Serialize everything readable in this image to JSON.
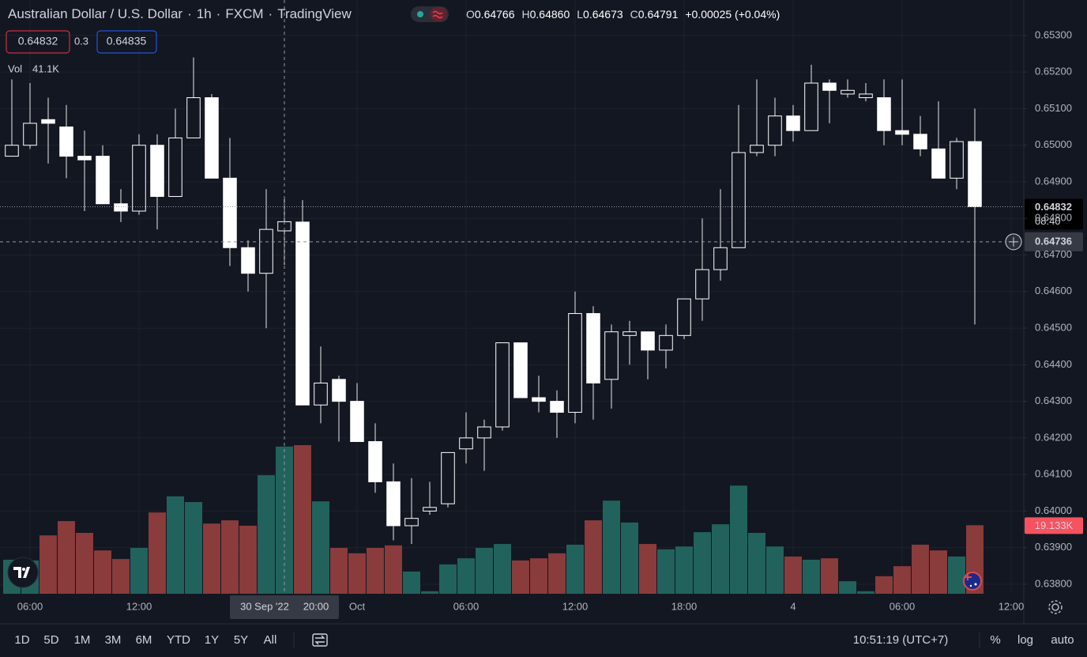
{
  "chart_data": {
    "type": "candlestick",
    "symbol": "Australian Dollar / U.S. Dollar",
    "interval": "1h",
    "exchange": "FXCM",
    "brand": "TradingView",
    "separator": "·",
    "ohlc_keys": [
      "O",
      "H",
      "L",
      "C"
    ],
    "legend_labels": [
      "0.64766",
      "0.64860",
      "0.64673",
      "0.64791"
    ],
    "change_label": "+0.00025 (+0.04%)",
    "trade": {
      "sell": 0.64832,
      "spread": 0.3,
      "buy": 0.64835
    },
    "volume_legend": {
      "name": "Vol",
      "label": "41.1K"
    },
    "open": [
      0.6497,
      0.65,
      0.6507,
      0.6505,
      0.6497,
      0.6497,
      0.6484,
      0.6482,
      0.65,
      0.6486,
      0.6502,
      0.6513,
      0.6491,
      0.6472,
      0.6465,
      0.64766,
      0.6479,
      0.6429,
      0.6436,
      0.643,
      0.6419,
      0.6408,
      0.6396,
      0.64,
      0.6402,
      0.6417,
      0.642,
      0.6423,
      0.6446,
      0.6431,
      0.643,
      0.6427,
      0.6454,
      0.6436,
      0.6448,
      0.6449,
      0.6444,
      0.6448,
      0.6458,
      0.6466,
      0.6472,
      0.6498,
      0.65,
      0.6508,
      0.6504,
      0.6517,
      0.6514,
      0.6513,
      0.6513,
      0.6504,
      0.6503,
      0.6499,
      0.6491,
      0.6501
    ],
    "high": [
      0.6518,
      0.6517,
      0.6513,
      0.6511,
      0.6504,
      0.65,
      0.6488,
      0.6503,
      0.6503,
      0.651,
      0.6524,
      0.6514,
      0.6502,
      0.6474,
      0.6488,
      0.6486,
      0.6485,
      0.6445,
      0.6437,
      0.6435,
      0.6424,
      0.6413,
      0.6409,
      0.6408,
      0.6416,
      0.6427,
      0.6425,
      0.6446,
      0.6446,
      0.6437,
      0.6433,
      0.646,
      0.6456,
      0.6451,
      0.6452,
      0.6449,
      0.6451,
      0.6458,
      0.648,
      0.6488,
      0.6511,
      0.6518,
      0.6513,
      0.6511,
      0.6522,
      0.6518,
      0.6518,
      0.6517,
      0.6518,
      0.6518,
      0.6508,
      0.6512,
      0.6502,
      0.651
    ],
    "low": [
      0.6497,
      0.6499,
      0.6495,
      0.6491,
      0.6482,
      0.6484,
      0.6479,
      0.6481,
      0.6477,
      0.6486,
      0.6502,
      0.6491,
      0.6467,
      0.646,
      0.645,
      0.64673,
      0.6429,
      0.6424,
      0.6419,
      0.6419,
      0.6405,
      0.6392,
      0.6391,
      0.6399,
      0.6401,
      0.6413,
      0.6411,
      0.6422,
      0.6431,
      0.6427,
      0.642,
      0.6424,
      0.6425,
      0.6428,
      0.644,
      0.6436,
      0.6439,
      0.6447,
      0.6452,
      0.6463,
      0.6472,
      0.6497,
      0.6497,
      0.6501,
      0.6504,
      0.6506,
      0.6513,
      0.6512,
      0.65,
      0.65,
      0.6497,
      0.6491,
      0.6488,
      0.6451
    ],
    "close": [
      0.65,
      0.6506,
      0.6506,
      0.6497,
      0.6496,
      0.6484,
      0.6482,
      0.65,
      0.6486,
      0.6502,
      0.6513,
      0.6491,
      0.6472,
      0.6465,
      0.6477,
      0.64791,
      0.6429,
      0.6435,
      0.643,
      0.6419,
      0.6408,
      0.6396,
      0.6398,
      0.6401,
      0.6416,
      0.642,
      0.6423,
      0.6446,
      0.6431,
      0.643,
      0.6427,
      0.6454,
      0.6435,
      0.6449,
      0.6449,
      0.6444,
      0.6448,
      0.6458,
      0.6466,
      0.6472,
      0.6498,
      0.65,
      0.6508,
      0.6504,
      0.6517,
      0.6515,
      0.6515,
      0.6514,
      0.6504,
      0.6503,
      0.6499,
      0.6491,
      0.6501,
      0.64832
    ],
    "volume": [
      9.5,
      9.3,
      16.3,
      20.3,
      17.0,
      12.1,
      9.7,
      12.8,
      22.7,
      27.2,
      25.6,
      19.6,
      20.5,
      19.0,
      33.1,
      41.1,
      41.5,
      25.8,
      12.8,
      11.3,
      12.8,
      13.5,
      6.2,
      0.7,
      8.2,
      9.9,
      12.8,
      13.9,
      9.3,
      9.9,
      11.3,
      13.7,
      20.5,
      26.0,
      19.9,
      13.9,
      12.4,
      13.2,
      17.2,
      19.4,
      30.2,
      17.0,
      13.2,
      10.4,
      9.5,
      9.9,
      3.5,
      0.7,
      4.9,
      7.7,
      13.7,
      12.1,
      10.4,
      19.133
    ],
    "volume_last_label": "19.133K",
    "volume_lim": [
      0,
      165.8
    ],
    "colors": {
      "up": "#131722",
      "down": "#ffffff",
      "border": "#ffffff",
      "wick": "#e8e8e8",
      "volume_up": "#22625d",
      "volume_down": "#8a3b3b"
    },
    "xlim": [
      -0.652,
      55.696
    ],
    "xticks": [
      {
        "value": 1,
        "label": "06:00"
      },
      {
        "value": 7,
        "label": "12:00"
      },
      {
        "value": 19,
        "label": "Oct"
      },
      {
        "value": 25,
        "label": "06:00"
      },
      {
        "value": 31,
        "label": "12:00"
      },
      {
        "value": 37,
        "label": "18:00"
      },
      {
        "value": 43,
        "label": "4"
      },
      {
        "value": 49,
        "label": "06:00"
      },
      {
        "value": 55,
        "label": "12:00"
      }
    ],
    "ylim": [
      0.63774,
      0.65397
    ],
    "yticks": [
      {
        "value": 0.653,
        "label": "0.65300"
      },
      {
        "value": 0.652,
        "label": "0.65200"
      },
      {
        "value": 0.651,
        "label": "0.65100"
      },
      {
        "value": 0.65,
        "label": "0.65000"
      },
      {
        "value": 0.649,
        "label": "0.64900"
      },
      {
        "value": 0.648,
        "label": "0.64800"
      },
      {
        "value": 0.647,
        "label": "0.64700"
      },
      {
        "value": 0.646,
        "label": "0.64600"
      },
      {
        "value": 0.645,
        "label": "0.64500"
      },
      {
        "value": 0.644,
        "label": "0.64400"
      },
      {
        "value": 0.643,
        "label": "0.64300"
      },
      {
        "value": 0.642,
        "label": "0.64200"
      },
      {
        "value": 0.641,
        "label": "0.64100"
      },
      {
        "value": 0.64,
        "label": "0.64000"
      },
      {
        "value": 0.639,
        "label": "0.63900"
      },
      {
        "value": 0.638,
        "label": "0.63800"
      }
    ],
    "grid": true,
    "countdown": "08:40",
    "crosshair": {
      "index": 15,
      "price": 0.64736,
      "time_labels": [
        "30 Sep '22",
        "20:00"
      ]
    },
    "ranges": [
      "1D",
      "5D",
      "1M",
      "3M",
      "6M",
      "YTD",
      "1Y",
      "5Y",
      "All"
    ],
    "clock": "10:51:19 (UTC+7)",
    "scale_options": [
      "%",
      "log",
      "auto"
    ]
  }
}
